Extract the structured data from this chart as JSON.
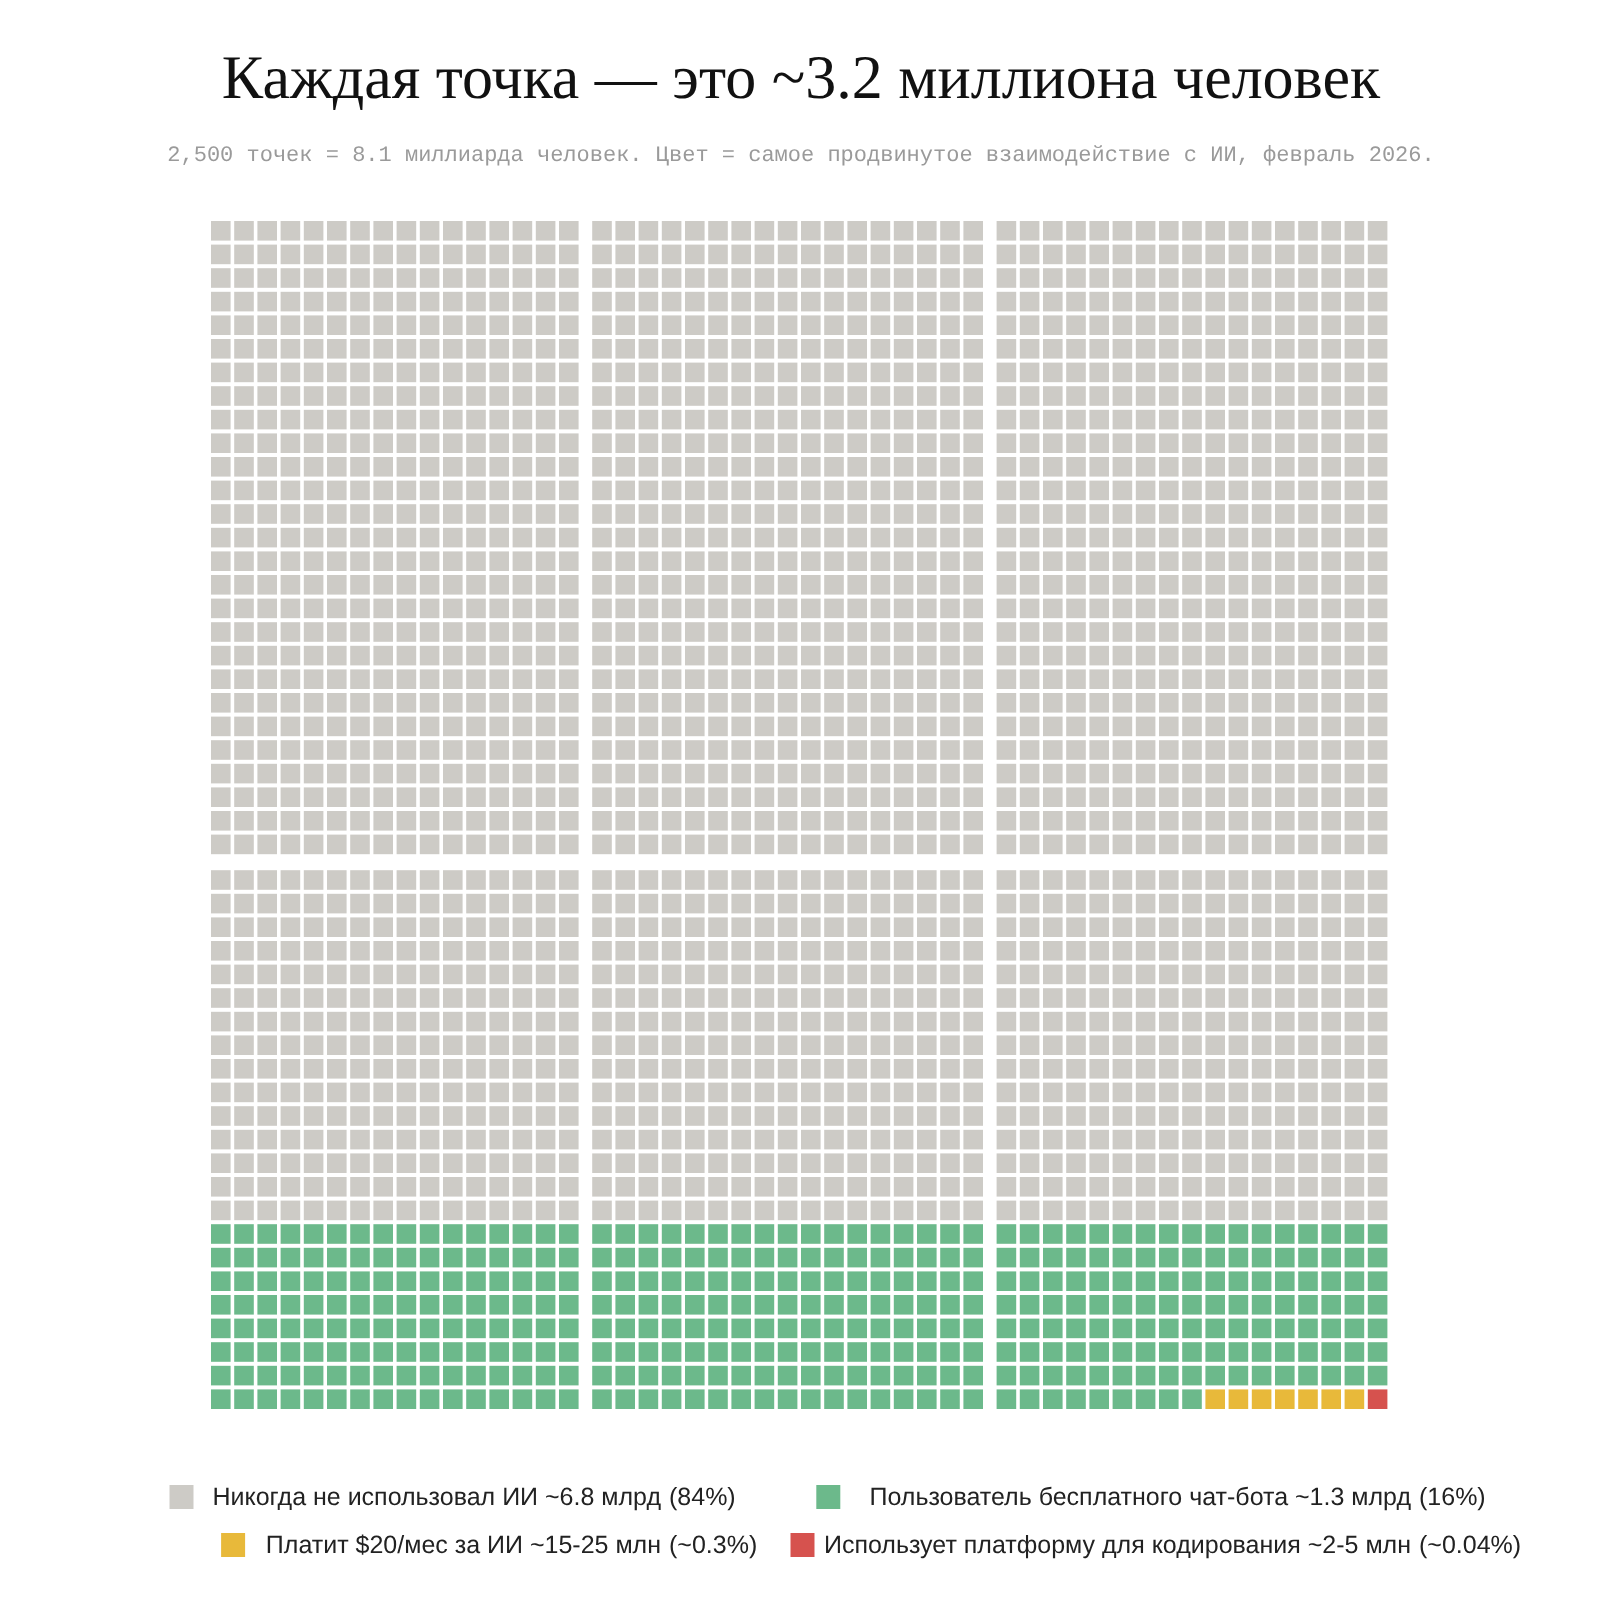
{
  "chart_data": {
    "type": "other",
    "title": "Каждая точка — это ~3.2 миллиона человек",
    "subtitle": "2,500 точек = 8.1 миллиарда человек. Цвет = самое продвинутое взаимодействие с ИИ, февраль 2026.",
    "categories": [
      "Никогда не использовал ИИ ~6.8 млрд",
      "Пользователь бесплатного чат-бота ~1.3 млрд",
      "Платит $20/мес за ИИ ~15-25 млн",
      "Использует платформу для кодирования ~2-5 млн"
    ],
    "values": [
      84,
      16,
      0.3,
      0.04
    ],
    "value_labels": [
      "(84%)",
      "(16%)",
      "(~0.3%)",
      "(~0.04%)"
    ],
    "colors": [
      "#cdcbc6",
      "#6cb98b",
      "#e8b93a",
      "#d6524e"
    ]
  }
}
